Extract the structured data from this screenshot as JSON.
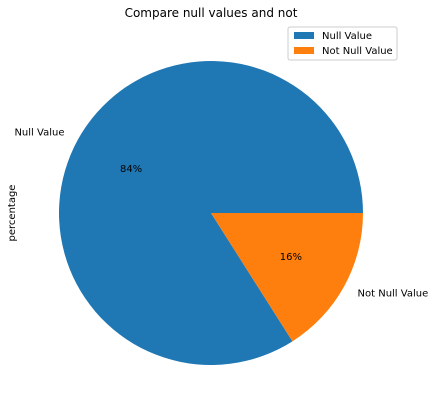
{
  "chart_data": {
    "type": "pie",
    "title": "Compare null values and not",
    "ylabel": "percentage",
    "slices": [
      {
        "label": "Null Value",
        "value": 84,
        "pct_label": "84%",
        "color": "#1f77b4"
      },
      {
        "label": "Not Null Value",
        "value": 16,
        "pct_label": "16%",
        "color": "#ff7f0e"
      }
    ],
    "legend": {
      "placement": "top-right",
      "entries": [
        "Null Value",
        "Not Null Value"
      ]
    }
  }
}
